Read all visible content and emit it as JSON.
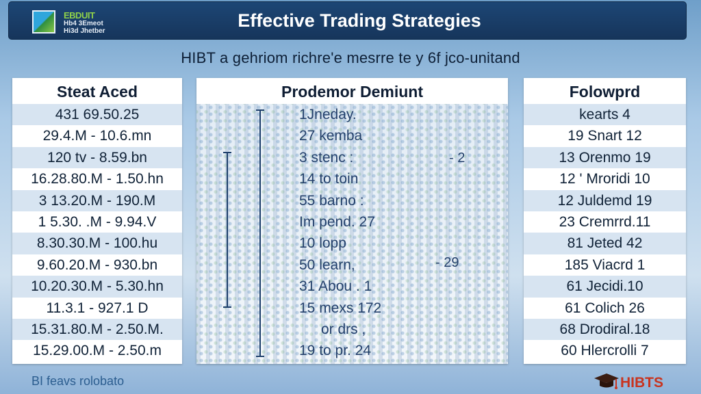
{
  "header": {
    "logo": {
      "line1": "EBDUIT",
      "line2": "Hb4 3Emeot",
      "line3": "Hi3d Jhetber"
    },
    "title": "Effective Trading Strategies"
  },
  "subtitle": "HIBT a gehriom richre'e mesrre te y 6f jco-unitand",
  "left_panel": {
    "title": "Steat Aced",
    "rows": [
      "431 69.50.25",
      "29.4.M - 10.6.mn",
      "120 tv - 8.59.bn",
      "16.28.80.M - 1.50.hn",
      "3 13.20.M - 190.M",
      "1 5.30. .M - 9.94.V",
      "8.30.30.M - 100.hu",
      "9.60.20.M - 930.bn",
      "10.20.30.M - 5.30.hn",
      "11.3.1 - 927.1 D",
      "15.31.80.M - 2.50.M.",
      "15.29.00.M - 2.50.m"
    ]
  },
  "mid_panel": {
    "title": "Prodemor Demiunt",
    "rows": [
      {
        "text": "1Jneday.",
        "indent": false
      },
      {
        "text": "27 kemba",
        "indent": false
      },
      {
        "text": "3 stenc :",
        "indent": false
      },
      {
        "text": "14 to toin",
        "indent": false
      },
      {
        "text": "55 barno :",
        "indent": false
      },
      {
        "text": "Im pend. 27",
        "indent": false
      },
      {
        "text": "10 lopp",
        "indent": false
      },
      {
        "text": "50 learn,",
        "indent": false
      },
      {
        "text": "31 Abou . 1",
        "indent": false
      },
      {
        "text": "15 mexs 172",
        "indent": false
      },
      {
        "text": "or drs ,",
        "indent": true
      },
      {
        "text": "19 to pr. 24",
        "indent": false
      }
    ],
    "side_labels": [
      "- 2",
      "- 29"
    ]
  },
  "right_panel": {
    "title": "Folowprd",
    "rows": [
      "kearts 4",
      "19 Snart 12",
      "13 Orenmo 19",
      "12 ' Mroridi 10",
      "12 Juldemd 19",
      "23 Cremrrd.11",
      "81 Jeted 42",
      "185 Viacrd 1",
      "61 Jecidi.10",
      "61 Colich 26",
      "68 Drodiral.18",
      "60 Hlercrolli 7"
    ]
  },
  "footer": {
    "left_text": "BI feavs rolobato",
    "brand": "HIBTS"
  },
  "colors": {
    "header_bg": "#1d4675",
    "brand_red": "#c8341f",
    "row_alt": "#d7e4f1"
  }
}
